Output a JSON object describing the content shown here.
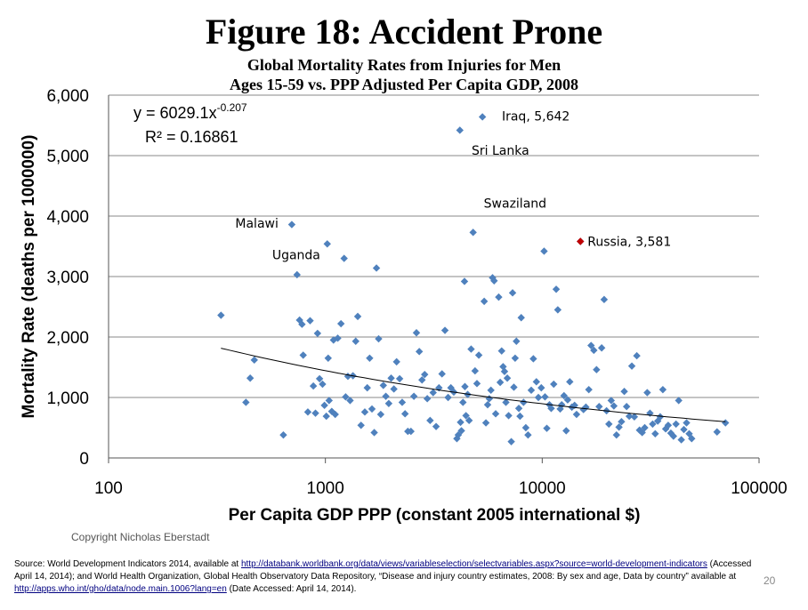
{
  "title": "Figure 18: Accident Prone",
  "subtitle_line1": "Global Mortality Rates from Injuries for Men",
  "subtitle_line2": "Ages 15-59 vs. PPP Adjusted Per Capita GDP, 2008",
  "copyright": "Copyright Nicholas Eberstadt",
  "page_number": "20",
  "source": {
    "prefix": "Source: World Development Indicators 2014, available at ",
    "link1": "http://databank.worldbank.org/data/views/variableselection/selectvariables.aspx?source=world-development-indicators",
    "mid1": " (Accessed April 14, 2014); and World Health Organization, Global Health Observatory Data Repository, “Disease and injury country estimates, 2008: By sex and age, Data by country” available at ",
    "link2": "http://apps.who.int/gho/data/node.main.1006?lang=en",
    "suffix": " (Date Accessed: April 14, 2014)."
  },
  "chart_data": {
    "type": "scatter",
    "xlabel": "Per Capita GDP PPP (constant 2005 international $)",
    "ylabel": "Mortality Rate (deaths per 1000000)",
    "xscale": "log",
    "xlim": [
      100,
      100000
    ],
    "ylim": [
      0,
      6000
    ],
    "x_ticks": [
      "100",
      "1000",
      "10000",
      "100000"
    ],
    "y_ticks": [
      "0",
      "1,000",
      "2,000",
      "3,000",
      "4,000",
      "5,000",
      "6,000"
    ],
    "grid": "horizontal",
    "equation_base": "y = 6029.1x",
    "equation_exp": "-0.207",
    "r_squared": "R² = 0.16861",
    "trendline": {
      "a": 6029.1,
      "b": -0.207,
      "x_from": 330,
      "x_to": 70000
    },
    "colors": {
      "points": "#4f81bd",
      "highlight": "#c00000",
      "trend": "#000000",
      "grid": "#888888"
    },
    "labels": [
      {
        "text": "Iraq, 5,642",
        "x": 5600,
        "y": 5642
      },
      {
        "text": "Sri Lanka",
        "x": 4300,
        "y": 5350
      },
      {
        "text": "Malawi",
        "x": 690,
        "y": 3870
      },
      {
        "text": "Uganda",
        "x": 1060,
        "y": 3540
      },
      {
        "text": "Swaziland",
        "x": 4800,
        "y": 3740
      },
      {
        "text": "Russia,  3,581",
        "x": 15000,
        "y": 3581
      }
    ],
    "highlight": {
      "x": 15000,
      "y": 3581
    },
    "points": [
      [
        330,
        2360
      ],
      [
        430,
        920
      ],
      [
        450,
        1320
      ],
      [
        470,
        1620
      ],
      [
        640,
        380
      ],
      [
        700,
        3860
      ],
      [
        740,
        3030
      ],
      [
        760,
        2280
      ],
      [
        780,
        2210
      ],
      [
        790,
        1700
      ],
      [
        830,
        760
      ],
      [
        850,
        2270
      ],
      [
        880,
        1190
      ],
      [
        900,
        740
      ],
      [
        920,
        2060
      ],
      [
        940,
        1310
      ],
      [
        970,
        1220
      ],
      [
        990,
        870
      ],
      [
        1010,
        690
      ],
      [
        1020,
        3540
      ],
      [
        1030,
        1650
      ],
      [
        1040,
        950
      ],
      [
        1070,
        770
      ],
      [
        1090,
        1950
      ],
      [
        1110,
        720
      ],
      [
        1140,
        1980
      ],
      [
        1180,
        2220
      ],
      [
        1220,
        3300
      ],
      [
        1240,
        1010
      ],
      [
        1270,
        1350
      ],
      [
        1300,
        950
      ],
      [
        1340,
        1360
      ],
      [
        1380,
        1930
      ],
      [
        1410,
        2340
      ],
      [
        1460,
        540
      ],
      [
        1520,
        760
      ],
      [
        1560,
        1160
      ],
      [
        1600,
        1650
      ],
      [
        1640,
        810
      ],
      [
        1680,
        420
      ],
      [
        1720,
        3140
      ],
      [
        1760,
        1970
      ],
      [
        1800,
        720
      ],
      [
        1850,
        1200
      ],
      [
        1900,
        1020
      ],
      [
        1960,
        900
      ],
      [
        2010,
        1320
      ],
      [
        2070,
        1140
      ],
      [
        2130,
        1590
      ],
      [
        2200,
        1310
      ],
      [
        2260,
        920
      ],
      [
        2330,
        730
      ],
      [
        2400,
        440
      ],
      [
        2480,
        440
      ],
      [
        2560,
        1020
      ],
      [
        2630,
        2070
      ],
      [
        2710,
        1760
      ],
      [
        2790,
        1290
      ],
      [
        2870,
        1380
      ],
      [
        2950,
        980
      ],
      [
        3040,
        620
      ],
      [
        3140,
        1080
      ],
      [
        3240,
        520
      ],
      [
        3340,
        1160
      ],
      [
        3450,
        1390
      ],
      [
        3560,
        2110
      ],
      [
        3680,
        1000
      ],
      [
        3790,
        1160
      ],
      [
        3910,
        1090
      ],
      [
        4040,
        320
      ],
      [
        4100,
        380
      ],
      [
        4170,
        5420
      ],
      [
        4200,
        590
      ],
      [
        4240,
        450
      ],
      [
        4310,
        920
      ],
      [
        4380,
        2920
      ],
      [
        4400,
        1180
      ],
      [
        4450,
        700
      ],
      [
        4530,
        1050
      ],
      [
        4600,
        620
      ],
      [
        4700,
        1800
      ],
      [
        4800,
        3730
      ],
      [
        4900,
        1440
      ],
      [
        5000,
        1230
      ],
      [
        5100,
        1700
      ],
      [
        5300,
        5640
      ],
      [
        5400,
        2590
      ],
      [
        5500,
        580
      ],
      [
        5600,
        880
      ],
      [
        5700,
        980
      ],
      [
        5800,
        1120
      ],
      [
        5900,
        2980
      ],
      [
        6000,
        2930
      ],
      [
        6100,
        730
      ],
      [
        6300,
        2660
      ],
      [
        6400,
        1250
      ],
      [
        6500,
        1770
      ],
      [
        6600,
        1510
      ],
      [
        6700,
        1430
      ],
      [
        6800,
        920
      ],
      [
        6900,
        1320
      ],
      [
        7000,
        700
      ],
      [
        7200,
        270
      ],
      [
        7300,
        2730
      ],
      [
        7400,
        1170
      ],
      [
        7500,
        1650
      ],
      [
        7600,
        1930
      ],
      [
        7800,
        820
      ],
      [
        7900,
        690
      ],
      [
        8000,
        2320
      ],
      [
        8200,
        920
      ],
      [
        8400,
        500
      ],
      [
        8600,
        380
      ],
      [
        8900,
        1120
      ],
      [
        9100,
        1640
      ],
      [
        9400,
        1260
      ],
      [
        9600,
        1000
      ],
      [
        9900,
        1160
      ],
      [
        10200,
        3420
      ],
      [
        10300,
        1010
      ],
      [
        10500,
        490
      ],
      [
        10800,
        880
      ],
      [
        11000,
        820
      ],
      [
        11300,
        1220
      ],
      [
        11600,
        2790
      ],
      [
        11800,
        2450
      ],
      [
        12100,
        810
      ],
      [
        12300,
        880
      ],
      [
        12600,
        1030
      ],
      [
        12900,
        450
      ],
      [
        13100,
        960
      ],
      [
        13400,
        1260
      ],
      [
        13700,
        840
      ],
      [
        14100,
        870
      ],
      [
        14400,
        720
      ],
      [
        15000,
        3581
      ],
      [
        15500,
        800
      ],
      [
        15900,
        840
      ],
      [
        16400,
        1130
      ],
      [
        16800,
        1860
      ],
      [
        17300,
        1780
      ],
      [
        17800,
        1460
      ],
      [
        18300,
        850
      ],
      [
        18800,
        1820
      ],
      [
        19300,
        2620
      ],
      [
        19800,
        780
      ],
      [
        20300,
        560
      ],
      [
        20800,
        950
      ],
      [
        21400,
        860
      ],
      [
        22000,
        380
      ],
      [
        22600,
        510
      ],
      [
        23200,
        600
      ],
      [
        23900,
        1100
      ],
      [
        24500,
        850
      ],
      [
        25200,
        690
      ],
      [
        25900,
        1520
      ],
      [
        26600,
        680
      ],
      [
        27300,
        1690
      ],
      [
        28100,
        460
      ],
      [
        28900,
        420
      ],
      [
        29700,
        500
      ],
      [
        30500,
        1080
      ],
      [
        31400,
        740
      ],
      [
        32300,
        560
      ],
      [
        33200,
        400
      ],
      [
        34100,
        610
      ],
      [
        35000,
        680
      ],
      [
        36000,
        1130
      ],
      [
        37100,
        480
      ],
      [
        38100,
        540
      ],
      [
        39200,
        410
      ],
      [
        40300,
        360
      ],
      [
        41400,
        560
      ],
      [
        42600,
        950
      ],
      [
        43800,
        300
      ],
      [
        45000,
        470
      ],
      [
        46300,
        580
      ],
      [
        47600,
        400
      ],
      [
        48900,
        320
      ],
      [
        64000,
        430
      ],
      [
        70000,
        580
      ]
    ]
  }
}
